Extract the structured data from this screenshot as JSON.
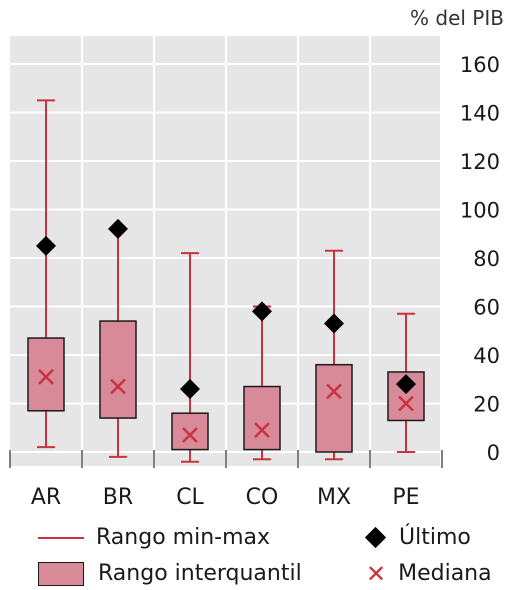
{
  "chart_data": {
    "type": "box",
    "unit_label": "% del PIB",
    "categories": [
      "AR",
      "BR",
      "CL",
      "CO",
      "MX",
      "PE"
    ],
    "ylim": [
      0,
      170
    ],
    "yticks": [
      0,
      20,
      40,
      60,
      80,
      100,
      120,
      140,
      160
    ],
    "grid": true,
    "y_axis_position": "right",
    "series": [
      {
        "name": "Rango min-max",
        "kind": "range",
        "low": [
          2,
          -2,
          -4,
          -3,
          -3,
          0
        ],
        "high": [
          145,
          92,
          82,
          60,
          83,
          57
        ]
      },
      {
        "name": "Rango interquantil",
        "kind": "box",
        "q1": [
          17,
          14,
          1,
          1,
          0,
          13
        ],
        "q3": [
          47,
          54,
          16,
          27,
          36,
          33
        ]
      },
      {
        "name": "Último",
        "kind": "marker",
        "values": [
          85,
          92,
          26,
          58,
          53,
          28
        ]
      },
      {
        "name": "Mediana",
        "kind": "marker",
        "values": [
          31,
          27,
          7,
          9,
          25,
          20
        ]
      }
    ],
    "colors": {
      "range": "#c8333f",
      "box_fill": "#d98a98",
      "box_stroke": "#1a1a1a",
      "last": "#000000",
      "median": "#c8333f",
      "grid": "#ffffff",
      "background": "#e6e6e6"
    }
  },
  "legend": {
    "range_label": "Rango min-max",
    "iqr_label": "Rango interquantil",
    "last_label": "Último",
    "median_label": "Mediana",
    "median_symbol": "✕"
  }
}
